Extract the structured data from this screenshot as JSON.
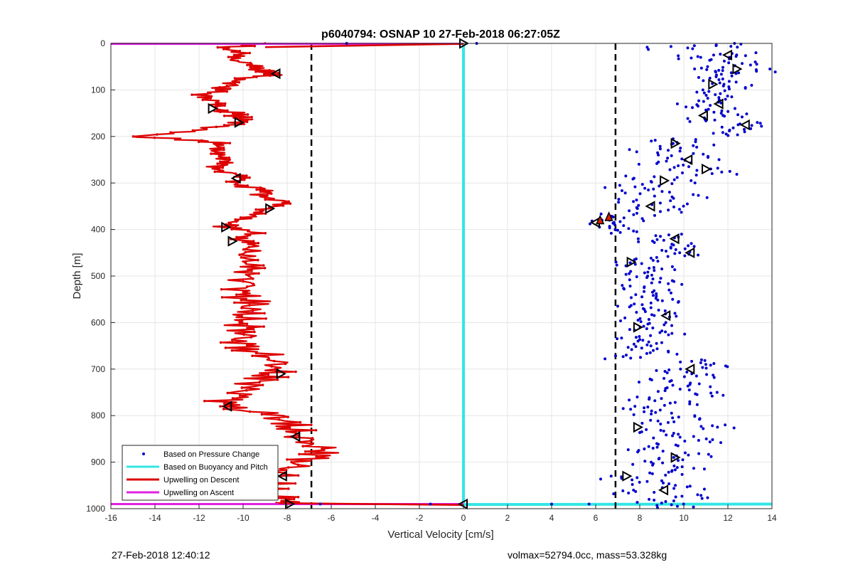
{
  "chart_data": {
    "type": "scatter",
    "title": "p6040794: OSNAP 10 27-Feb-2018 06:27:05Z",
    "xlabel": "Vertical Velocity [cm/s]",
    "ylabel": "Depth [m]",
    "xlim": [
      -16,
      14
    ],
    "ylim": [
      0,
      1000
    ],
    "y_reversed": true,
    "grid": true,
    "x_ticks": [
      "-16",
      "-14",
      "-12",
      "-10",
      "-8",
      "-6",
      "-4",
      "-2",
      "0",
      "2",
      "4",
      "6",
      "8",
      "10",
      "12",
      "14"
    ],
    "y_ticks": [
      "0",
      "100",
      "200",
      "300",
      "400",
      "500",
      "600",
      "700",
      "800",
      "900",
      "1000"
    ],
    "legend_position": "bottom-left",
    "legend": [
      {
        "label": "Based on Pressure Change",
        "color": "#0000cc",
        "style": "dot"
      },
      {
        "label": "Based on Buoyancy and Pitch",
        "color": "#33e6e6",
        "style": "line"
      },
      {
        "label": "Upwelling on Descent",
        "color": "#dd0000",
        "style": "line"
      },
      {
        "label": "Upwelling on Ascent",
        "color": "#e020e0",
        "style": "line"
      }
    ],
    "threshold_lines_x": [
      -6.9,
      6.9
    ],
    "buoyancy_pitch_x": 0,
    "descent_profile": {
      "depth": [
        0,
        10,
        25,
        40,
        55,
        65,
        75,
        90,
        100,
        112,
        125,
        140,
        150,
        160,
        172,
        185,
        200,
        210,
        220,
        235,
        250,
        265,
        280,
        295,
        310,
        325,
        340,
        355,
        370,
        385,
        395,
        410,
        425,
        440,
        460,
        480,
        500,
        520,
        540,
        560,
        580,
        600,
        620,
        640,
        660,
        680,
        700,
        720,
        740,
        760,
        780,
        800,
        820,
        840,
        860,
        880,
        900,
        920,
        940,
        960,
        975,
        990
      ],
      "velocity": [
        -9.0,
        -11.0,
        -10.0,
        -10.2,
        -9.5,
        -8.5,
        -9.7,
        -10.6,
        -11.2,
        -11.7,
        -11.1,
        -11.4,
        -10.4,
        -10.0,
        -10.3,
        -12.0,
        -15.0,
        -11.5,
        -10.8,
        -11.3,
        -10.7,
        -11.2,
        -10.5,
        -10.2,
        -9.6,
        -9.0,
        -8.2,
        -8.9,
        -9.5,
        -10.4,
        -10.8,
        -9.4,
        -10.1,
        -9.7,
        -9.9,
        -9.6,
        -9.9,
        -10.0,
        -10.2,
        -9.6,
        -9.9,
        -10.0,
        -9.7,
        -10.1,
        -9.6,
        -8.4,
        -8.5,
        -9.1,
        -9.8,
        -10.4,
        -11.0,
        -8.5,
        -8.0,
        -7.6,
        -6.8,
        -6.2,
        -7.3,
        -8.1,
        -8.6,
        -8.9,
        -8.4,
        -7.9
      ]
    },
    "pressure_change_points": {
      "depth": [
        0,
        5,
        20,
        25,
        30,
        40,
        50,
        55,
        60,
        70,
        80,
        90,
        100,
        110,
        120,
        130,
        140,
        150,
        160,
        170,
        180,
        190,
        205,
        215,
        225,
        235,
        245,
        255,
        265,
        275,
        285,
        295,
        305,
        315,
        325,
        335,
        345,
        355,
        365,
        375,
        380,
        390,
        400,
        410,
        420,
        430,
        440,
        450,
        460,
        470,
        480,
        490,
        500,
        510,
        520,
        530,
        540,
        550,
        560,
        570,
        580,
        590,
        600,
        610,
        620,
        630,
        640,
        650,
        660,
        670,
        680,
        690,
        700,
        710,
        720,
        730,
        740,
        750,
        760,
        770,
        780,
        790,
        800,
        810,
        820,
        830,
        840,
        850,
        860,
        870,
        880,
        890,
        900,
        910,
        920,
        930,
        940,
        950,
        960,
        970,
        980,
        990
      ],
      "velocity": [
        11.9,
        9.5,
        12.3,
        10.8,
        11.6,
        12.8,
        11.0,
        13.0,
        12.0,
        11.3,
        11.8,
        12.4,
        11.1,
        11.7,
        11.2,
        10.6,
        11.5,
        12.2,
        10.9,
        12.9,
        12.5,
        11.9,
        9.4,
        10.2,
        8.8,
        9.9,
        10.3,
        9.1,
        10.6,
        11.2,
        8.5,
        9.3,
        7.7,
        8.4,
        9.8,
        8.1,
        9.0,
        8.8,
        7.5,
        7.0,
        6.4,
        6.7,
        7.4,
        9.2,
        8.6,
        9.9,
        9.5,
        10.1,
        8.2,
        7.6,
        8.9,
        7.9,
        8.4,
        9.1,
        7.8,
        8.7,
        8.3,
        9.3,
        7.6,
        8.6,
        9.0,
        7.9,
        8.8,
        8.1,
        9.4,
        7.5,
        8.5,
        8.0,
        8.9,
        7.4,
        10.5,
        11.5,
        9.3,
        10.8,
        8.9,
        10.2,
        9.6,
        11.0,
        8.4,
        9.9,
        7.9,
        8.7,
        10.1,
        9.0,
        11.4,
        8.6,
        9.7,
        10.8,
        9.2,
        8.1,
        10.5,
        9.3,
        8.5,
        10.2,
        9.0,
        7.2,
        8.6,
        9.8,
        7.8,
        10.3,
        8.9,
        9.5
      ]
    },
    "outlier_points": {
      "depth": [
        0,
        0,
        990,
        990,
        990,
        990
      ],
      "velocity": [
        -5.3,
        0.6,
        4.0,
        5.7,
        -6.5,
        -1.5
      ]
    },
    "triangle_markers": {
      "depth": [
        0,
        25,
        55,
        65,
        88,
        130,
        140,
        155,
        170,
        175,
        215,
        250,
        270,
        290,
        295,
        350,
        355,
        385,
        395,
        420,
        425,
        450,
        470,
        585,
        610,
        700,
        710,
        780,
        825,
        845,
        890,
        930,
        930,
        960,
        990,
        990
      ],
      "velocity": [
        0,
        12.0,
        12.4,
        -8.5,
        11.3,
        11.6,
        -11.4,
        10.9,
        -10.2,
        12.8,
        9.6,
        10.2,
        11.0,
        -10.3,
        9.1,
        8.5,
        -8.8,
        6.0,
        -10.8,
        9.6,
        -10.5,
        10.3,
        7.6,
        9.2,
        7.9,
        10.3,
        -8.3,
        -10.7,
        7.9,
        -7.6,
        9.6,
        -8.2,
        7.4,
        9.1,
        -7.9,
        0
      ]
    },
    "filled_triangle_markers": {
      "depth": [
        373,
        380
      ],
      "velocity": [
        6.6,
        6.2
      ]
    }
  },
  "footer": {
    "left": "27-Feb-2018 12:40:12",
    "right": "volmax=52794.0cc, mass=53.328kg"
  }
}
